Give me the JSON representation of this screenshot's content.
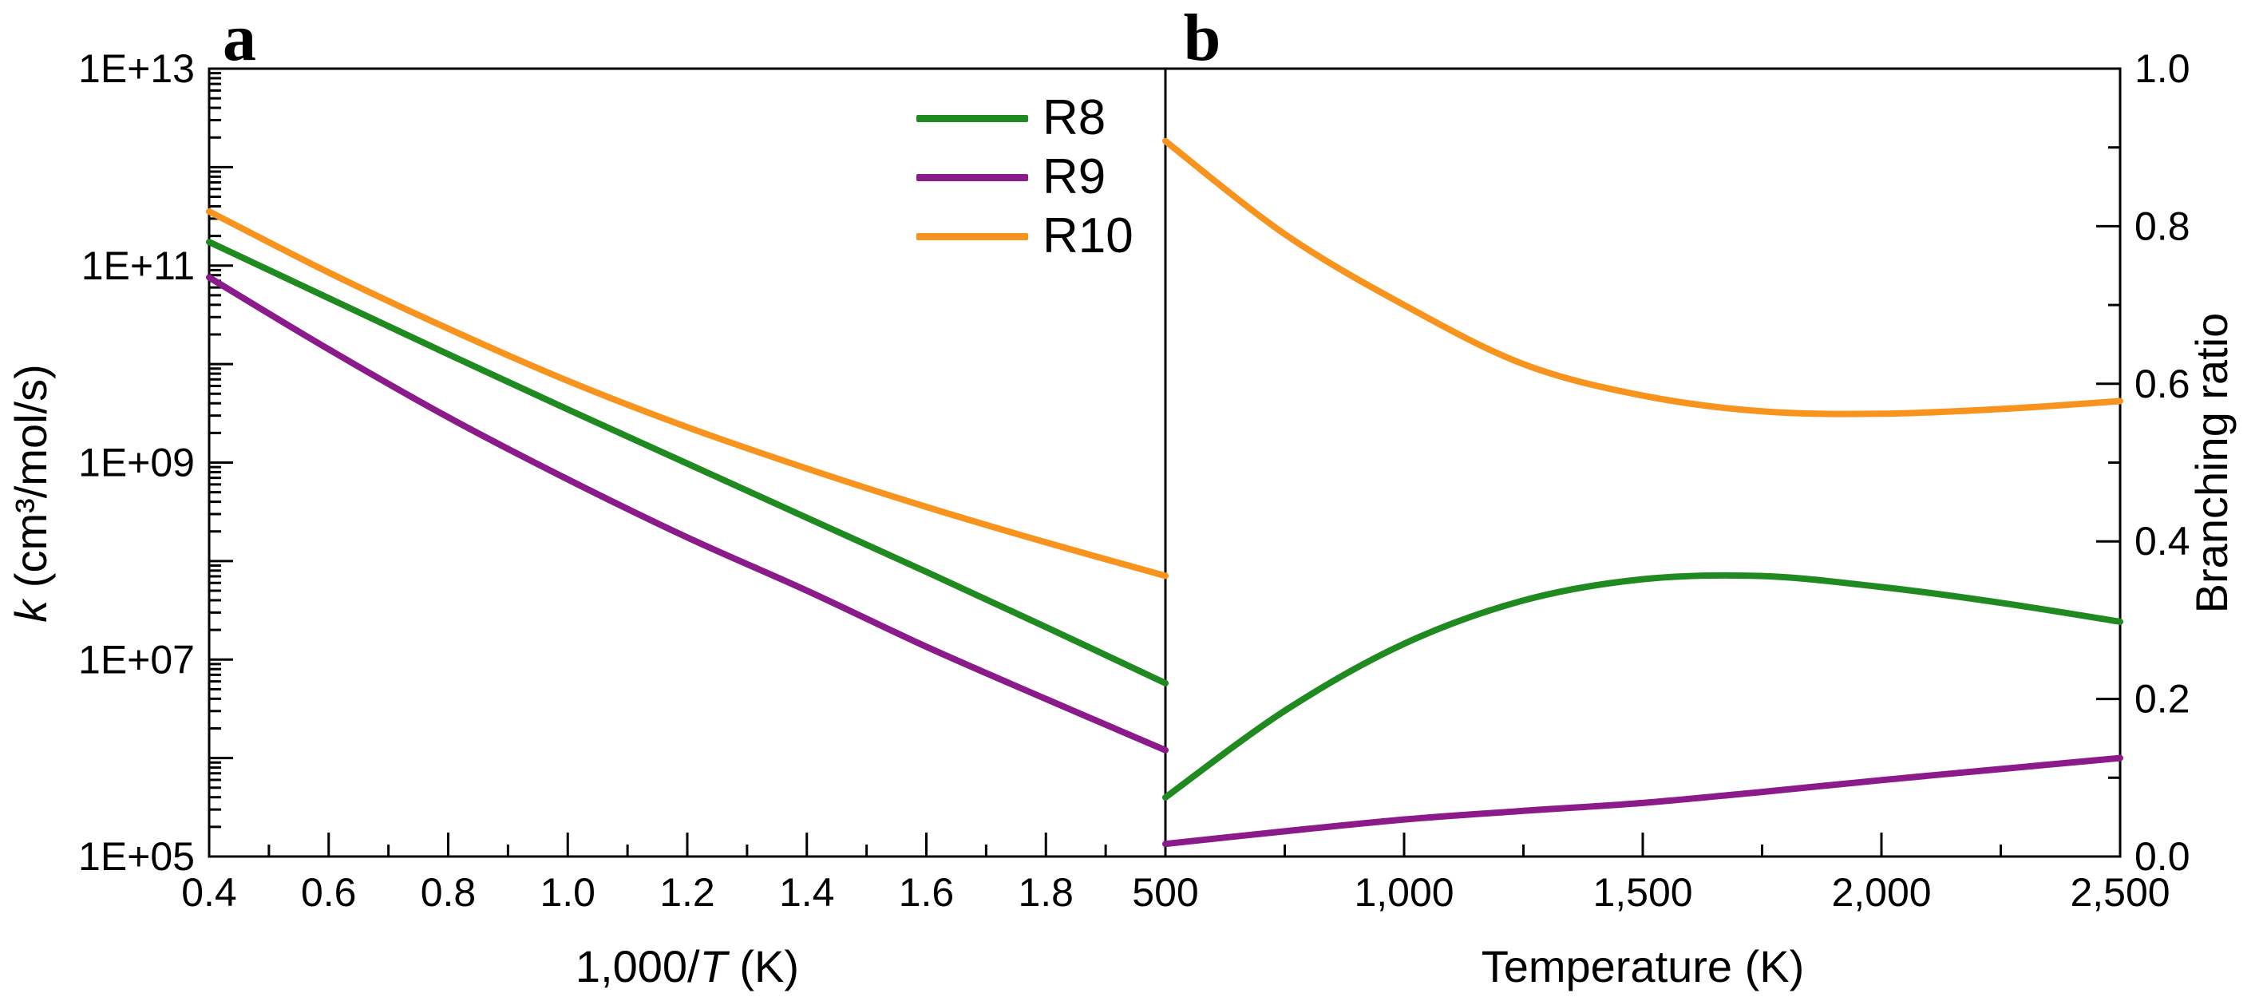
{
  "figure": {
    "background": "#ffffff",
    "axis_color": "#000000",
    "panel_letters": [
      "a",
      "b"
    ]
  },
  "chart_data": [
    {
      "panel_label": "a",
      "type": "line",
      "x_axis": {
        "label": "1,000/T (K)",
        "label_rich": [
          {
            "t": "1,000/"
          },
          {
            "t": "T",
            "italic": true
          },
          {
            "t": " (K)"
          }
        ],
        "range": [
          0.4,
          2.0
        ],
        "major_ticks": [
          0.4,
          0.6,
          0.8,
          1.0,
          1.2,
          1.4,
          1.6,
          1.8
        ],
        "major_tick_labels": [
          "0.4",
          "0.6",
          "0.8",
          "1.0",
          "1.2",
          "1.4",
          "1.6",
          "1.8"
        ],
        "minor_ticks": [
          0.5,
          0.7,
          0.9,
          1.1,
          1.3,
          1.5,
          1.7,
          1.9
        ]
      },
      "y_axis": {
        "label": "k (cm³/mol/s)",
        "label_rich": [
          {
            "t": "k",
            "italic": true
          },
          {
            "t": " (cm³/mol/s)"
          }
        ],
        "scale": "log10",
        "range_log10": [
          5,
          13
        ],
        "major_ticks_log10": [
          5,
          6,
          7,
          8,
          9,
          10,
          11,
          12,
          13
        ],
        "labeled_ticks": [
          {
            "log10": 5,
            "label": "1E+05"
          },
          {
            "log10": 7,
            "label": "1E+07"
          },
          {
            "log10": 9,
            "label": "1E+09"
          },
          {
            "log10": 11,
            "label": "1E+11"
          },
          {
            "log10": 13,
            "label": "1E+13"
          }
        ],
        "minor_tick_mantissas": [
          2,
          3,
          4,
          5,
          6,
          7,
          8,
          9
        ]
      },
      "series": [
        {
          "name": "R8",
          "color": "#1f8a1f",
          "x": [
            0.4,
            0.6,
            0.8,
            1.0,
            1.2,
            1.4,
            1.6,
            1.8,
            2.0
          ],
          "log10_k": [
            11.24,
            10.67,
            10.1,
            9.54,
            8.99,
            8.44,
            7.89,
            7.33,
            6.76
          ]
        },
        {
          "name": "R9",
          "color": "#8b1a8b",
          "x": [
            0.4,
            0.6,
            0.8,
            1.0,
            1.2,
            1.4,
            1.6,
            1.8,
            2.0
          ],
          "log10_k": [
            10.88,
            10.15,
            9.46,
            8.83,
            8.24,
            7.7,
            7.13,
            6.6,
            6.08
          ]
        },
        {
          "name": "R10",
          "color": "#f8941d",
          "x": [
            0.4,
            0.6,
            0.8,
            1.0,
            1.2,
            1.4,
            1.6,
            1.8,
            2.0
          ],
          "log10_k": [
            11.55,
            10.93,
            10.36,
            9.83,
            9.36,
            8.94,
            8.55,
            8.19,
            7.85
          ]
        }
      ],
      "legend": {
        "position": "top-right-inside",
        "items": [
          {
            "label": "R8",
            "color": "#1f8a1f"
          },
          {
            "label": "R9",
            "color": "#8b1a8b"
          },
          {
            "label": "R10",
            "color": "#f8941d"
          }
        ]
      }
    },
    {
      "panel_label": "b",
      "type": "line",
      "x_axis": {
        "label": "Temperature (K)",
        "range": [
          500,
          2500
        ],
        "major_ticks": [
          500,
          1000,
          1500,
          2000,
          2500
        ],
        "major_tick_labels": [
          "500",
          "1,000",
          "1,500",
          "2,000",
          "2,500"
        ],
        "minor_ticks": [
          750,
          1250,
          1750,
          2250
        ]
      },
      "y_axis": {
        "label": "Branching ratio",
        "side": "right",
        "range": [
          0.0,
          1.0
        ],
        "major_ticks": [
          0.0,
          0.2,
          0.4,
          0.6,
          0.8,
          1.0
        ],
        "major_tick_labels": [
          "0.0",
          "0.2",
          "0.4",
          "0.6",
          "0.8",
          "1.0"
        ],
        "minor_ticks": [
          0.1,
          0.3,
          0.5,
          0.7,
          0.9
        ]
      },
      "series": [
        {
          "name": "R8",
          "color": "#1f8a1f",
          "x": [
            500,
            750,
            1000,
            1250,
            1500,
            1750,
            2000,
            2250,
            2500
          ],
          "branching_ratio": [
            0.075,
            0.185,
            0.27,
            0.325,
            0.352,
            0.356,
            0.342,
            0.322,
            0.298
          ]
        },
        {
          "name": "R9",
          "color": "#8b1a8b",
          "x": [
            500,
            750,
            1000,
            1250,
            1500,
            1750,
            2000,
            2250,
            2500
          ],
          "branching_ratio": [
            0.016,
            0.032,
            0.047,
            0.058,
            0.068,
            0.082,
            0.097,
            0.111,
            0.125
          ]
        },
        {
          "name": "R10",
          "color": "#f8941d",
          "x": [
            500,
            750,
            1000,
            1250,
            1500,
            1750,
            2000,
            2250,
            2500
          ],
          "branching_ratio": [
            0.908,
            0.79,
            0.7,
            0.625,
            0.585,
            0.565,
            0.562,
            0.568,
            0.578
          ]
        }
      ]
    }
  ]
}
